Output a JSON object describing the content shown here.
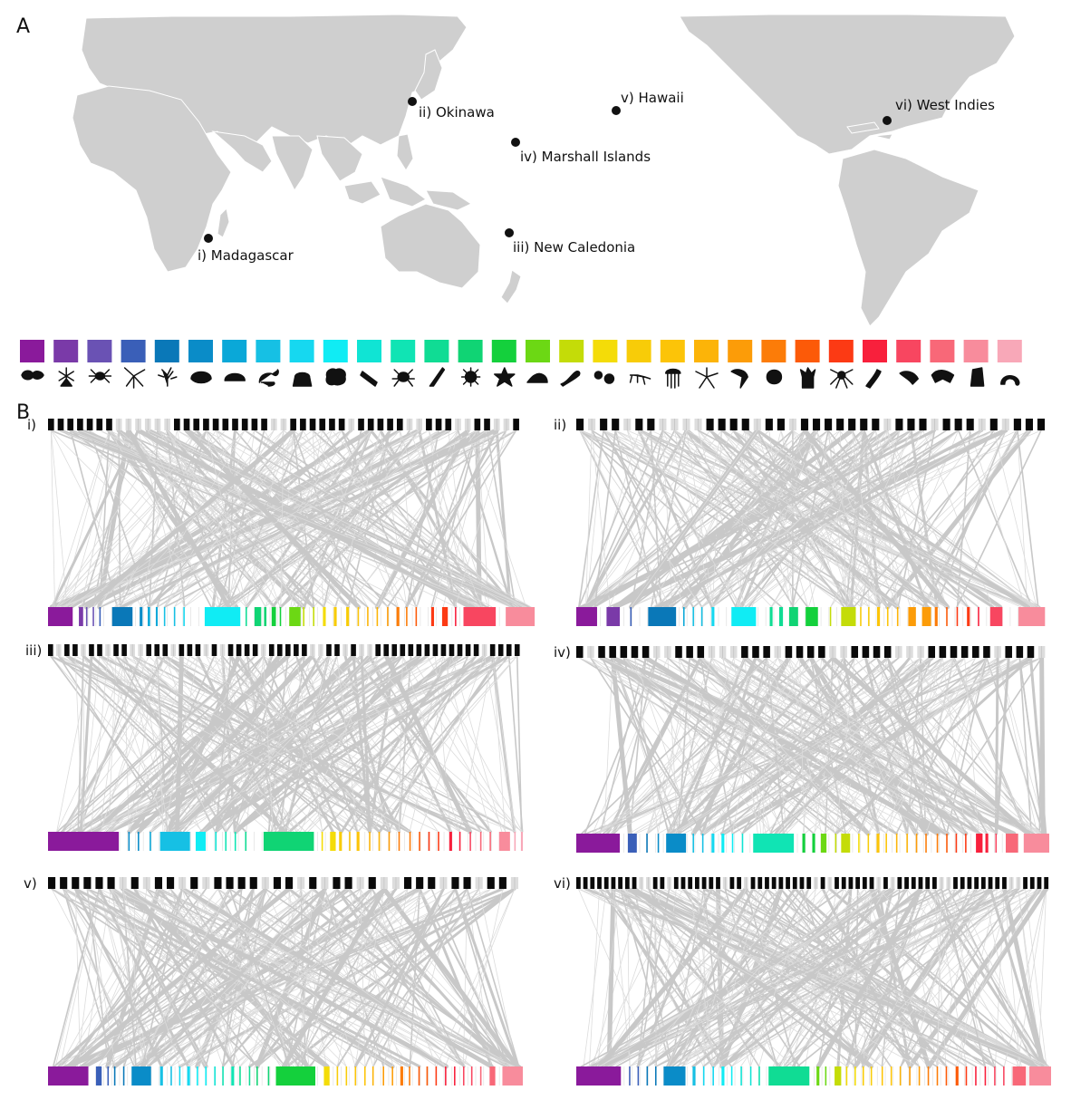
{
  "panels": {
    "a_label": "A",
    "b_label": "B"
  },
  "map": {
    "land_color": "#cfcfcf",
    "sites": [
      {
        "id": "madagascar",
        "label": "i)  Madagascar"
      },
      {
        "id": "okinawa",
        "label": "ii)  Okinawa"
      },
      {
        "id": "new-caledonia",
        "label": "iii)  New Caledonia"
      },
      {
        "id": "marshall",
        "label": "iv)  Marshall Islands"
      },
      {
        "id": "hawaii",
        "label": "v)  Hawaii"
      },
      {
        "id": "west-indies",
        "label": "vi)  West Indies"
      }
    ]
  },
  "legend": {
    "colors": [
      "#8a1a9b",
      "#7a3aa8",
      "#6a52b4",
      "#3a5fb8",
      "#0a78b8",
      "#0a8cc8",
      "#0aa8d8",
      "#16c0e4",
      "#16d8f0",
      "#10ecf4",
      "#10e4d4",
      "#10e4b4",
      "#10dc94",
      "#10d474",
      "#14d03c",
      "#6cd814",
      "#c4dc08",
      "#f4dc08",
      "#f8cc08",
      "#fcc408",
      "#fcb408",
      "#fc9c08",
      "#fc7c08",
      "#fc5a08",
      "#fc3a14",
      "#f8203c",
      "#f84660",
      "#f86878",
      "#f88c9c",
      "#f8a8b8"
    ],
    "icons": [
      "fish-icon",
      "hydroid-icon",
      "spider-crab-icon",
      "brittle-star-icon",
      "branching-coral-icon",
      "bivalve-shell-icon",
      "brain-coral-icon",
      "sea-hare-icon",
      "anemone-icon",
      "sponge-icon",
      "chiton-icon",
      "crab-icon",
      "feather-icon",
      "sea-urchin-icon",
      "sea-star-icon",
      "snail-icon",
      "nudibranch-icon",
      "egg-mass-icon",
      "ant-icon",
      "jellyfish-icon",
      "basket-star-icon",
      "mantis-shrimp-icon",
      "limpet-icon",
      "soft-coral-icon",
      "octopus-icon",
      "worm-icon",
      "shrimp-icon",
      "amphipod-icon",
      "tunicate-icon",
      "copepod-icon"
    ]
  },
  "networks": [
    {
      "id": "i",
      "label": "i)",
      "top": "1111111000000111111111100111111011111001110011001",
      "bottom": [
        [
          0,
          5.2
        ],
        [
          6.5,
          0.9
        ],
        [
          8,
          0.3
        ],
        [
          9.4,
          0.3
        ],
        [
          10.8,
          0.3
        ],
        [
          13.5,
          4.3
        ],
        [
          19.3,
          0.6
        ],
        [
          21,
          0.5
        ],
        [
          22.7,
          0.4
        ],
        [
          24.4,
          0.3
        ],
        [
          26.5,
          0.3
        ],
        [
          28.5,
          0.3
        ],
        [
          33,
          7.5
        ],
        [
          41.6,
          0.3
        ],
        [
          43.5,
          1.4
        ],
        [
          45.5,
          0.5
        ],
        [
          47.1,
          0.9
        ],
        [
          48.8,
          0.3
        ],
        [
          50.8,
          2.4
        ],
        [
          53.7,
          0.3
        ],
        [
          55.8,
          0.3
        ],
        [
          57.9,
          0.6
        ],
        [
          60.2,
          0.6
        ],
        [
          62.8,
          0.6
        ],
        [
          65.2,
          0.3
        ],
        [
          67.2,
          0.3
        ],
        [
          69.2,
          0.3
        ],
        [
          71.4,
          0.3
        ],
        [
          73.4,
          0.6
        ],
        [
          75.4,
          0.3
        ],
        [
          77.4,
          0.3
        ],
        [
          80.7,
          0.6
        ],
        [
          83,
          1.2
        ],
        [
          85.7,
          0.3
        ],
        [
          87.5,
          6.8
        ],
        [
          96.4,
          6.1
        ]
      ]
    },
    {
      "id": "ii",
      "label": "ii)",
      "top": "1011011000011110110111111101110111010111",
      "bottom": [
        [
          0,
          4.4
        ],
        [
          6.4,
          2.8
        ],
        [
          11.4,
          0.3
        ],
        [
          15.2,
          5.9
        ],
        [
          22.6,
          0.3
        ],
        [
          24.6,
          0.3
        ],
        [
          26.4,
          0.3
        ],
        [
          28.6,
          0.6
        ],
        [
          32.8,
          5.2
        ],
        [
          40.9,
          0.6
        ],
        [
          42.9,
          0.8
        ],
        [
          45,
          1.9
        ],
        [
          48.5,
          2.6
        ],
        [
          53.6,
          0.3
        ],
        [
          56,
          3.1
        ],
        [
          60,
          0.3
        ],
        [
          61.7,
          0.3
        ],
        [
          63.6,
          0.6
        ],
        [
          65.7,
          0.3
        ],
        [
          67.8,
          0.3
        ],
        [
          70.2,
          1.6
        ],
        [
          73.1,
          1.9
        ],
        [
          75.8,
          0.6
        ],
        [
          78.2,
          0.3
        ],
        [
          80.4,
          0.3
        ],
        [
          82.6,
          0.6
        ],
        [
          84.9,
          0.3
        ],
        [
          87.5,
          2.6
        ],
        [
          93.5,
          5.6
        ]
      ]
    },
    {
      "id": "iii",
      "label": "iii)",
      "top": "1011011011001110111010111101111100110100111111111111101111",
      "bottom": [
        [
          0,
          14.9
        ],
        [
          16.9,
          0.3
        ],
        [
          18.9,
          0.3
        ],
        [
          21.4,
          0.3
        ],
        [
          23.6,
          6.3
        ],
        [
          31.1,
          2.1
        ],
        [
          35.2,
          0.3
        ],
        [
          37.3,
          0.3
        ],
        [
          39.3,
          0.3
        ],
        [
          41.5,
          0.3
        ],
        [
          45.4,
          10.6
        ],
        [
          57.6,
          0.3
        ],
        [
          59.4,
          1.2
        ],
        [
          61.3,
          0.6
        ],
        [
          63.4,
          0.3
        ],
        [
          65,
          0.6
        ],
        [
          67.6,
          0.3
        ],
        [
          69.6,
          0.3
        ],
        [
          71.7,
          0.3
        ],
        [
          73.8,
          0.3
        ],
        [
          76.1,
          0.3
        ],
        [
          78.1,
          0.3
        ],
        [
          80.1,
          0.3
        ],
        [
          82.1,
          0.3
        ],
        [
          84.5,
          0.6
        ],
        [
          86.6,
          0.3
        ],
        [
          88.8,
          0.3
        ],
        [
          91,
          0.3
        ],
        [
          93,
          0.3
        ],
        [
          95,
          2.3
        ],
        [
          98.2,
          0.3
        ],
        [
          99.6,
          0.4
        ]
      ]
    },
    {
      "id": "iv",
      "label": "iv)",
      "top": "1011111001110001110111100111100011111101110",
      "bottom": [
        [
          0,
          9.2
        ],
        [
          10.9,
          1.9
        ],
        [
          14.8,
          0.3
        ],
        [
          17.2,
          0.3
        ],
        [
          19,
          4.2
        ],
        [
          24.6,
          0.3
        ],
        [
          26.6,
          0.3
        ],
        [
          28.6,
          0.6
        ],
        [
          30.7,
          0.6
        ],
        [
          32.9,
          0.3
        ],
        [
          35,
          0.3
        ],
        [
          37.4,
          8.6
        ],
        [
          47.8,
          0.6
        ],
        [
          49.9,
          0.6
        ],
        [
          51.7,
          1.2
        ],
        [
          54.7,
          0.3
        ],
        [
          56,
          1.9
        ],
        [
          59.6,
          0.3
        ],
        [
          61.6,
          0.3
        ],
        [
          63.5,
          0.6
        ],
        [
          65.4,
          0.3
        ],
        [
          67.6,
          0.3
        ],
        [
          69.8,
          0.3
        ],
        [
          71.8,
          0.3
        ],
        [
          73.8,
          0.3
        ],
        [
          76.2,
          0.3
        ],
        [
          78.2,
          0.3
        ],
        [
          80.2,
          0.3
        ],
        [
          82.2,
          0.3
        ],
        [
          84.5,
          1.4
        ],
        [
          86.5,
          0.6
        ],
        [
          88.6,
          0.3
        ],
        [
          90.8,
          2.6
        ],
        [
          94.6,
          5.4
        ]
      ]
    },
    {
      "id": "v",
      "label": "v)",
      "top": "1111110101101011110110101101001110110110",
      "bottom": [
        [
          0,
          8.5
        ],
        [
          10.1,
          1.2
        ],
        [
          12.5,
          0.3
        ],
        [
          13.9,
          0.3
        ],
        [
          15.8,
          0.3
        ],
        [
          17.6,
          4.1
        ],
        [
          23.6,
          0.6
        ],
        [
          25.8,
          0.3
        ],
        [
          27.6,
          0.3
        ],
        [
          29.3,
          0.6
        ],
        [
          31.3,
          0.3
        ],
        [
          33.1,
          0.3
        ],
        [
          35,
          0.3
        ],
        [
          36.7,
          0.3
        ],
        [
          38.6,
          0.6
        ],
        [
          40.3,
          0.3
        ],
        [
          42.3,
          0.3
        ],
        [
          43.9,
          0.3
        ],
        [
          46.3,
          0.3
        ],
        [
          48,
          8.3
        ],
        [
          58.1,
          1.2
        ],
        [
          60.8,
          0.3
        ],
        [
          62.7,
          0.3
        ],
        [
          64.6,
          0.3
        ],
        [
          66.6,
          0.3
        ],
        [
          68.3,
          0.3
        ],
        [
          70.5,
          0.3
        ],
        [
          72.4,
          0.3
        ],
        [
          74.2,
          0.6
        ],
        [
          76,
          0.3
        ],
        [
          78,
          0.3
        ],
        [
          79.7,
          0.3
        ],
        [
          81.6,
          0.3
        ],
        [
          83.6,
          0.3
        ],
        [
          85.5,
          0.3
        ],
        [
          87.4,
          0.3
        ],
        [
          89.1,
          0.3
        ],
        [
          91,
          0.3
        ],
        [
          93,
          1.2
        ],
        [
          95.7,
          4.3
        ]
      ]
    },
    {
      "id": "vi",
      "label": "vi)",
      "top": "11111111100110111111101101111111110101111110101111110011111111001111",
      "bottom": [
        [
          0,
          9.4
        ],
        [
          11.1,
          0.3
        ],
        [
          12.9,
          0.3
        ],
        [
          14.8,
          0.3
        ],
        [
          16.6,
          0.3
        ],
        [
          18.4,
          4.6
        ],
        [
          24.5,
          0.6
        ],
        [
          26.7,
          0.3
        ],
        [
          28.7,
          0.3
        ],
        [
          30.6,
          0.6
        ],
        [
          32.6,
          0.3
        ],
        [
          34.6,
          0.3
        ],
        [
          36.6,
          0.3
        ],
        [
          38.4,
          0.3
        ],
        [
          40.5,
          8.6
        ],
        [
          50.6,
          0.6
        ],
        [
          52.4,
          0.3
        ],
        [
          54.4,
          1.4
        ],
        [
          56.8,
          0.3
        ],
        [
          58.6,
          0.3
        ],
        [
          60.3,
          0.3
        ],
        [
          62,
          0.3
        ],
        [
          64.3,
          0.3
        ],
        [
          66.2,
          0.3
        ],
        [
          68.1,
          0.3
        ],
        [
          70.1,
          0.3
        ],
        [
          72.1,
          0.3
        ],
        [
          74,
          0.3
        ],
        [
          75.9,
          0.3
        ],
        [
          77.8,
          0.3
        ],
        [
          79.9,
          0.6
        ],
        [
          82,
          0.3
        ],
        [
          84,
          0.3
        ],
        [
          86,
          0.3
        ],
        [
          88,
          0.3
        ],
        [
          89.9,
          0.3
        ],
        [
          91.9,
          2.8
        ],
        [
          95.4,
          4.6
        ]
      ]
    }
  ]
}
